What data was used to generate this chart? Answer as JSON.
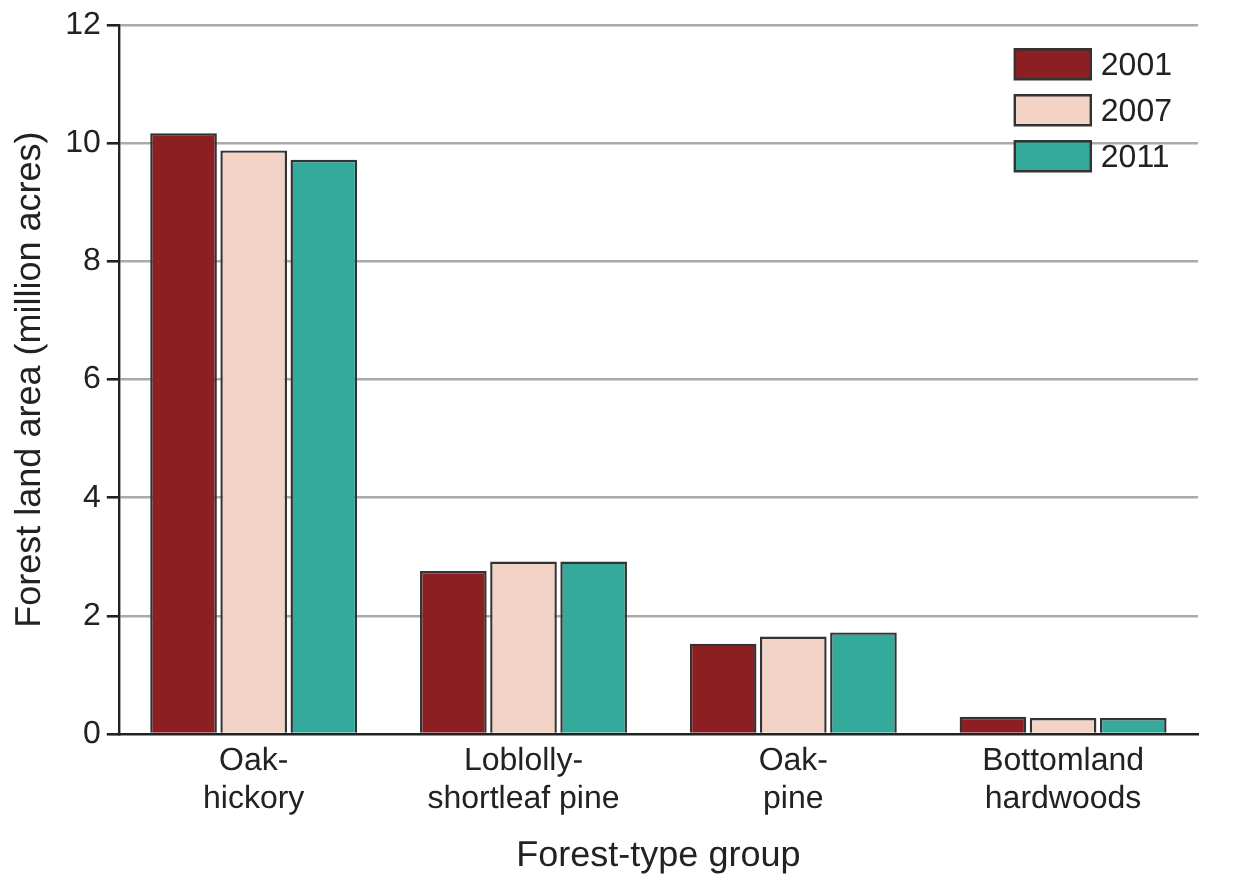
{
  "chart_data": {
    "type": "bar",
    "xlabel": "Forest-type group",
    "ylabel": "Forest land area (million acres)",
    "categories": [
      "Oak-hickory",
      "Loblolly-shortleaf pine",
      "Oak-pine",
      "Bottomland hardwoods"
    ],
    "series": [
      {
        "name": "2001",
        "color": "#8b1f22",
        "values": [
          10.17,
          2.76,
          1.53,
          0.29
        ]
      },
      {
        "name": "2007",
        "color": "#f2d3c5",
        "values": [
          9.88,
          2.92,
          1.65,
          0.27
        ]
      },
      {
        "name": "2011",
        "color": "#33aa9c",
        "values": [
          9.72,
          2.92,
          1.72,
          0.27
        ]
      }
    ],
    "ylim": [
      0,
      12
    ],
    "yticks": [
      0,
      2,
      4,
      6,
      8,
      10,
      12
    ],
    "grid": "y",
    "legend": "top right"
  }
}
